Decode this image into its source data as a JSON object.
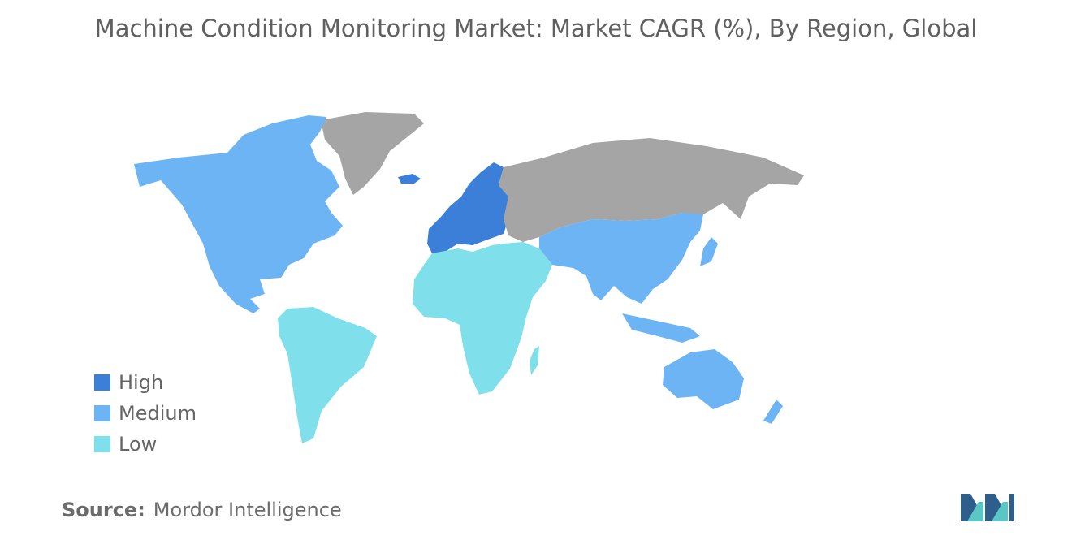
{
  "title": "Machine Condition Monitoring Market: Market CAGR (%), By Region, Global",
  "map": {
    "colors": {
      "high": "#3b7fd9",
      "medium": "#6cb4f4",
      "low": "#7fe0ec",
      "no_data": "#a5a5a5"
    },
    "regions": [
      {
        "name": "Europe",
        "level": "High"
      },
      {
        "name": "North America",
        "level": "Medium"
      },
      {
        "name": "Asia-Pacific",
        "level": "Medium"
      },
      {
        "name": "South America",
        "level": "Low"
      },
      {
        "name": "Middle East and Africa",
        "level": "Low"
      }
    ]
  },
  "legend": {
    "items": [
      {
        "label": "High",
        "color": "#3b7fd9"
      },
      {
        "label": "Medium",
        "color": "#6cb4f4"
      },
      {
        "label": "Low",
        "color": "#7fe0ec"
      }
    ]
  },
  "source": {
    "label": "Source:",
    "value": "Mordor Intelligence"
  },
  "logo": {
    "icon": "mordor-intelligence-logo",
    "colors": [
      "#2d5e8c",
      "#5bc6c6"
    ]
  }
}
